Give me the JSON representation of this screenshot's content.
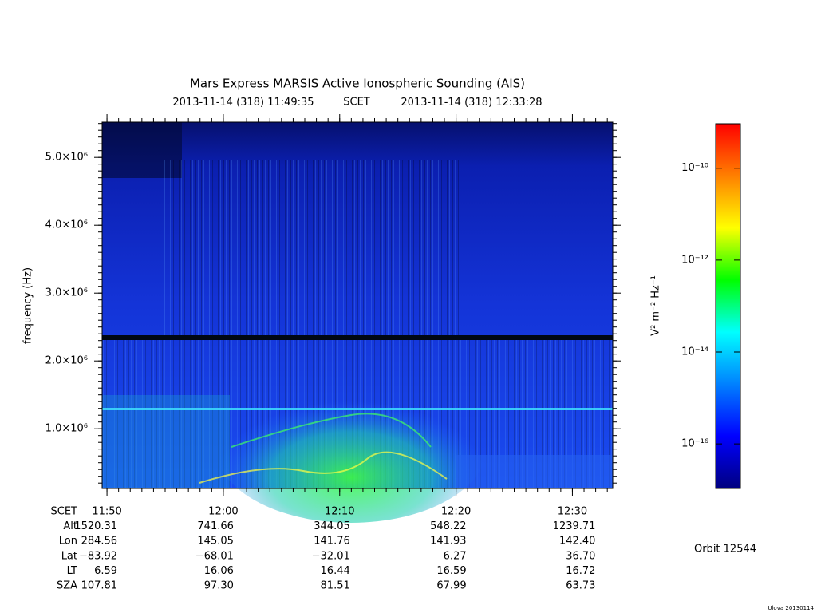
{
  "chart_data": {
    "type": "spectrogram",
    "title": "Mars Express MARSIS Active Ionospheric Sounding (AIS)",
    "x_start": {
      "date": "2013-11-14 (318)",
      "time": "11:49:35"
    },
    "x_center_label": "SCET",
    "x_end": {
      "date": "2013-11-14 (318)",
      "time": "12:33:28"
    },
    "ylabel": "frequency (Hz)",
    "ylim": [
      120000,
      5520000
    ],
    "yticks": [
      {
        "value": 1000000,
        "label": "1.0×10⁶"
      },
      {
        "value": 2000000,
        "label": "2.0×10⁶"
      },
      {
        "value": 3000000,
        "label": "3.0×10⁶"
      },
      {
        "value": 4000000,
        "label": "4.0×10⁶"
      },
      {
        "value": 5000000,
        "label": "5.0×10⁶"
      }
    ],
    "xticks": [
      "11:50",
      "12:00",
      "12:10",
      "12:20",
      "12:30"
    ],
    "ephemeris": {
      "x_row_label": "SCET",
      "rows": [
        {
          "label": "Alt",
          "values": [
            "1520.31",
            "741.66",
            "344.05",
            "548.22",
            "1239.71"
          ]
        },
        {
          "label": "Lon",
          "values": [
            "284.56",
            "145.05",
            "141.76",
            "141.93",
            "142.40"
          ]
        },
        {
          "label": "Lat",
          "values": [
            "−83.92",
            "−68.01",
            "−32.01",
            "6.27",
            "36.70"
          ]
        },
        {
          "label": "LT",
          "values": [
            "6.59",
            "16.06",
            "16.44",
            "16.59",
            "16.72"
          ]
        },
        {
          "label": "SZA",
          "values": [
            "107.81",
            "97.30",
            "81.51",
            "67.99",
            "63.73"
          ]
        }
      ]
    },
    "colorbar": {
      "label": "V² m⁻² Hz⁻¹",
      "log_scale": true,
      "clim": [
        1.07e-17,
        9.3e-10
      ],
      "ticks": [
        {
          "value": 1e-10,
          "label": "10⁻¹⁰"
        },
        {
          "value": 1e-12,
          "label": "10⁻¹²"
        },
        {
          "value": 1e-14,
          "label": "10⁻¹⁴"
        },
        {
          "value": 1e-16,
          "label": "10⁻¹⁶"
        }
      ],
      "colormap": [
        "#00007f",
        "#0000ff",
        "#0080ff",
        "#00ffff",
        "#00ff00",
        "#ffff00",
        "#ff8000",
        "#ff0000"
      ]
    },
    "orbit": "Orbit 12544",
    "footer": "Ulova 20130114"
  }
}
